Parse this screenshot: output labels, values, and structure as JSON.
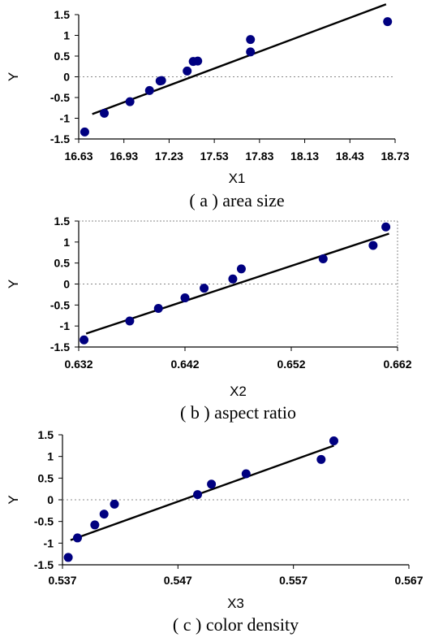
{
  "colors": {
    "marker": "#000080",
    "fit_line": "#000000",
    "zero_line": "#888888",
    "frame": "#888888"
  },
  "chart_data": [
    {
      "type": "scatter",
      "caption": "( a ) area size",
      "xlabel": "X1",
      "ylabel": "Y",
      "xlim": [
        16.63,
        18.73
      ],
      "ylim": [
        -1.5,
        1.5
      ],
      "xticks": [
        "16.63",
        "16.93",
        "17.23",
        "17.53",
        "17.83",
        "18.13",
        "18.43",
        "18.73"
      ],
      "yticks": [
        "1.5",
        "1",
        "0.5",
        "0",
        "-0.5",
        "-1",
        "-1.5"
      ],
      "grid": false,
      "reference_line_y": 0,
      "fit_line": [
        [
          16.72,
          -0.9
        ],
        [
          18.67,
          1.75
        ]
      ],
      "points": [
        [
          16.67,
          -1.33
        ],
        [
          16.8,
          -0.88
        ],
        [
          16.97,
          -0.6
        ],
        [
          17.1,
          -0.33
        ],
        [
          17.17,
          -0.1
        ],
        [
          17.18,
          -0.09
        ],
        [
          17.35,
          0.14
        ],
        [
          17.39,
          0.37
        ],
        [
          17.42,
          0.38
        ],
        [
          17.77,
          0.6
        ],
        [
          17.77,
          0.9
        ],
        [
          18.68,
          1.33
        ]
      ]
    },
    {
      "type": "scatter",
      "caption": "( b ) aspect ratio",
      "xlabel": "X2",
      "ylabel": "Y",
      "xlim": [
        0.632,
        0.662
      ],
      "ylim": [
        -1.5,
        1.5
      ],
      "xticks": [
        "0.632",
        "0.642",
        "0.652",
        "0.662"
      ],
      "yticks": [
        "1.5",
        "1",
        "0.5",
        "0",
        "-0.5",
        "-1",
        "-1.5"
      ],
      "grid": false,
      "reference_line_y": 0,
      "fit_line": [
        [
          0.6327,
          -1.18
        ],
        [
          0.6612,
          1.2
        ]
      ],
      "points": [
        [
          0.6325,
          -1.33
        ],
        [
          0.6368,
          -0.88
        ],
        [
          0.6395,
          -0.58
        ],
        [
          0.642,
          -0.33
        ],
        [
          0.6438,
          -0.1
        ],
        [
          0.6465,
          0.12
        ],
        [
          0.6473,
          0.36
        ],
        [
          0.655,
          0.6
        ],
        [
          0.6597,
          0.92
        ],
        [
          0.6609,
          1.36
        ]
      ]
    },
    {
      "type": "scatter",
      "caption": "( c ) color density",
      "xlabel": "X3",
      "ylabel": "Y",
      "xlim": [
        0.537,
        0.567
      ],
      "ylim": [
        -1.5,
        1.5
      ],
      "xticks": [
        "0.537",
        "0.547",
        "0.557",
        "0.567"
      ],
      "yticks": [
        "1.5",
        "1",
        "0.5",
        "0",
        "-0.5",
        "-1",
        "-1.5"
      ],
      "grid": false,
      "reference_line_y": 0,
      "fit_line": [
        [
          0.5377,
          -0.93
        ],
        [
          0.5605,
          1.25
        ]
      ],
      "points": [
        [
          0.5375,
          -1.33
        ],
        [
          0.5383,
          -0.88
        ],
        [
          0.5398,
          -0.58
        ],
        [
          0.5406,
          -0.33
        ],
        [
          0.5415,
          -0.1
        ],
        [
          0.5487,
          0.12
        ],
        [
          0.5499,
          0.36
        ],
        [
          0.5529,
          0.6
        ],
        [
          0.5594,
          0.93
        ],
        [
          0.5605,
          1.36
        ]
      ]
    }
  ]
}
